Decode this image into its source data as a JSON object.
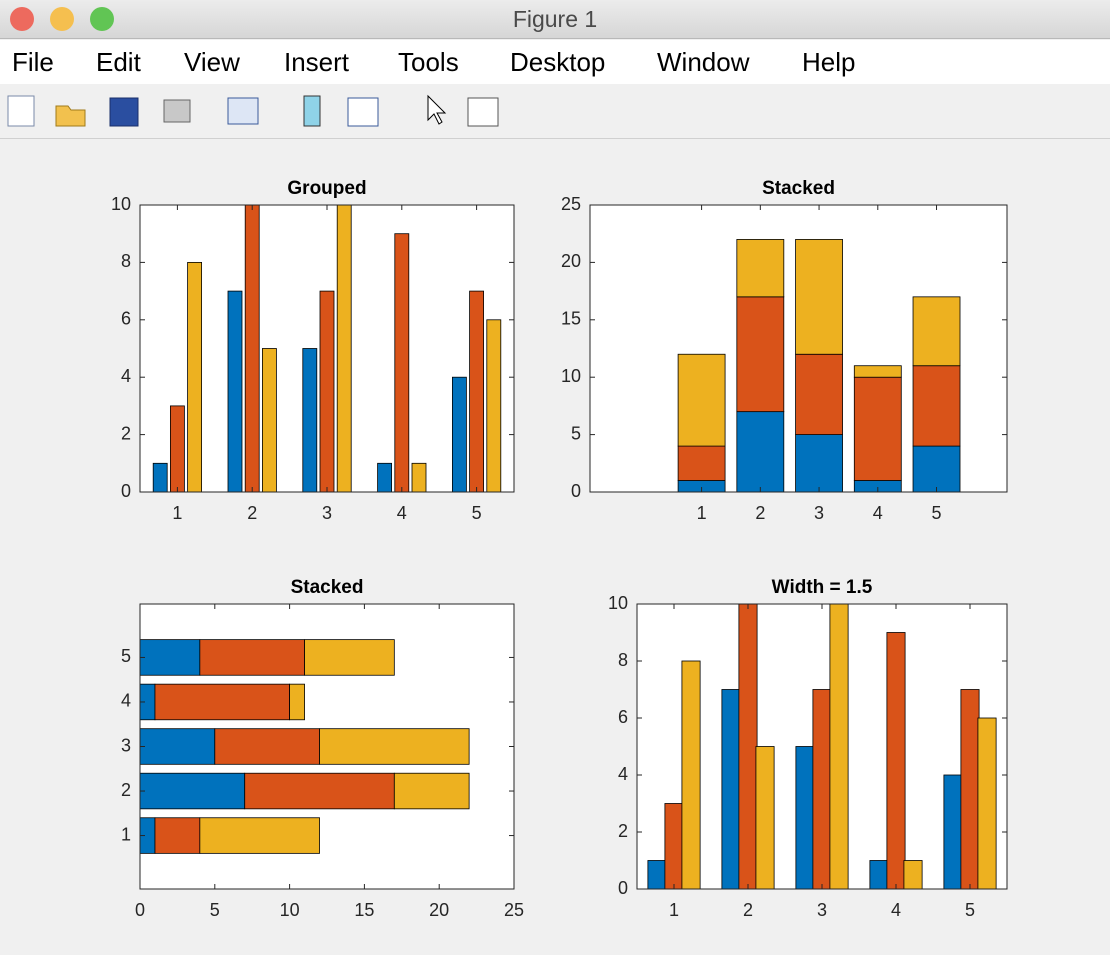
{
  "window": {
    "title": "Figure 1",
    "menu": [
      "File",
      "Edit",
      "View",
      "Insert",
      "Tools",
      "Desktop",
      "Window",
      "Help"
    ]
  },
  "chart_data": [
    {
      "type": "grouped_bar",
      "title": "Grouped",
      "categories": [
        1,
        2,
        3,
        4,
        5
      ],
      "bar_width": 0.8,
      "series": [
        {
          "color": "#0072bd",
          "values": [
            1,
            7,
            5,
            1,
            4
          ]
        },
        {
          "color": "#d95319",
          "values": [
            3,
            10,
            7,
            9,
            7
          ]
        },
        {
          "color": "#edb120",
          "values": [
            8,
            5,
            10,
            1,
            6
          ]
        }
      ],
      "xlim": [
        0.5,
        5.5
      ],
      "ylim": [
        0,
        10
      ],
      "yticks": [
        0,
        2,
        4,
        6,
        8,
        10
      ]
    },
    {
      "type": "stacked_bar",
      "title": "Stacked",
      "categories": [
        1,
        2,
        3,
        4,
        5
      ],
      "bar_width": 0.8,
      "series": [
        {
          "color": "#0072bd",
          "values": [
            1,
            7,
            5,
            1,
            4
          ]
        },
        {
          "color": "#d95319",
          "values": [
            3,
            10,
            7,
            9,
            7
          ]
        },
        {
          "color": "#edb120",
          "values": [
            8,
            5,
            10,
            1,
            6
          ]
        }
      ],
      "xlim": [
        -0.9,
        6.2
      ],
      "ylim": [
        0,
        25
      ],
      "yticks": [
        0,
        5,
        10,
        15,
        20,
        25
      ]
    },
    {
      "type": "stacked_barh",
      "title": "Stacked",
      "categories": [
        1,
        2,
        3,
        4,
        5
      ],
      "bar_width": 0.8,
      "series": [
        {
          "color": "#0072bd",
          "values": [
            1,
            7,
            5,
            1,
            4
          ]
        },
        {
          "color": "#d95319",
          "values": [
            3,
            10,
            7,
            9,
            7
          ]
        },
        {
          "color": "#edb120",
          "values": [
            8,
            5,
            10,
            1,
            6
          ]
        }
      ],
      "ylim": [
        -0.2,
        6.2
      ],
      "xlim": [
        0,
        25
      ],
      "xticks": [
        0,
        5,
        10,
        15,
        20,
        25
      ]
    },
    {
      "type": "grouped_bar",
      "title": "Width = 1.5",
      "categories": [
        1,
        2,
        3,
        4,
        5
      ],
      "bar_width": 1.5,
      "series": [
        {
          "color": "#0072bd",
          "values": [
            1,
            7,
            5,
            1,
            4
          ]
        },
        {
          "color": "#d95319",
          "values": [
            3,
            10,
            7,
            9,
            7
          ]
        },
        {
          "color": "#edb120",
          "values": [
            8,
            5,
            10,
            1,
            6
          ]
        }
      ],
      "xlim": [
        0.5,
        5.5
      ],
      "ylim": [
        0,
        10
      ],
      "yticks": [
        0,
        2,
        4,
        6,
        8,
        10
      ]
    }
  ]
}
